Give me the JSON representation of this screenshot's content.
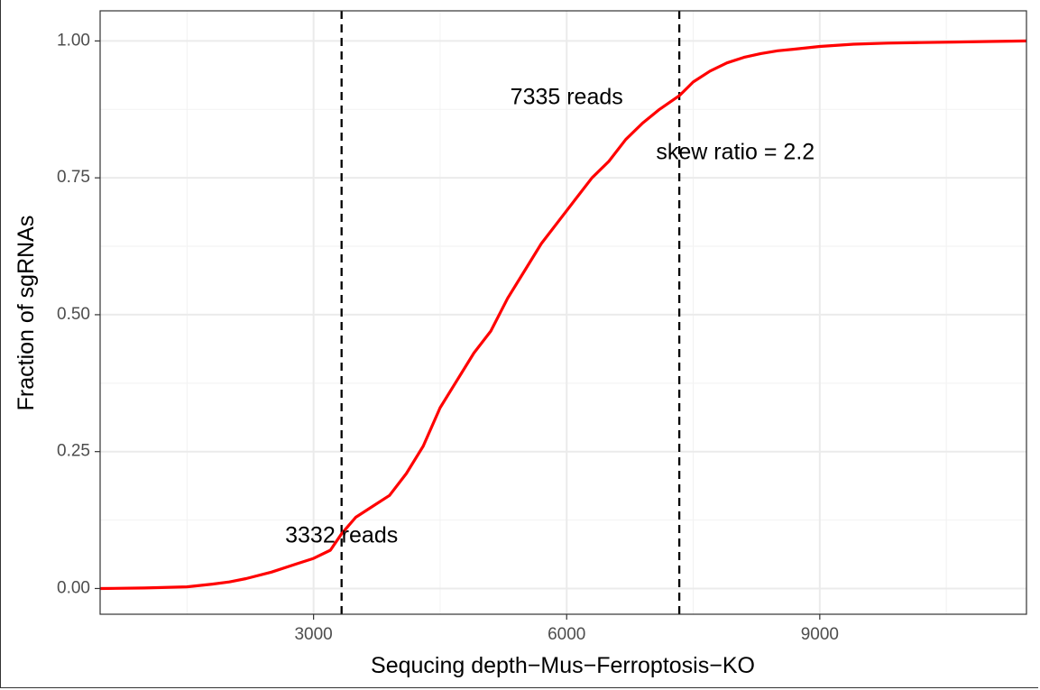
{
  "chart_data": {
    "type": "line",
    "xlabel": "Sequcing depth−Mus−Ferroptosis−KO",
    "ylabel": "Fraction of sgRNAs",
    "xlim": [
      470,
      11450
    ],
    "ylim": [
      -0.047,
      1.055
    ],
    "x_ticks": [
      3000,
      6000,
      9000
    ],
    "x_tick_labels": [
      "3000",
      "6000",
      "9000"
    ],
    "x_minor_grid": [
      1500,
      4500,
      7500,
      10500
    ],
    "y_ticks": [
      0,
      0.25,
      0.5,
      0.75,
      1.0
    ],
    "y_tick_labels": [
      "0.00",
      "0.25",
      "0.50",
      "0.75",
      "1.00"
    ],
    "y_minor_grid": [
      0.125,
      0.375,
      0.625,
      0.875
    ],
    "grid": true,
    "series": [
      {
        "color": "#ff0000",
        "x": [
          470,
          1000,
          1500,
          1800,
          2000,
          2200,
          2500,
          2800,
          3000,
          3200,
          3332,
          3500,
          3700,
          3900,
          4100,
          4300,
          4500,
          4700,
          4900,
          5100,
          5300,
          5500,
          5700,
          5900,
          6100,
          6300,
          6500,
          6700,
          6900,
          7100,
          7335,
          7500,
          7700,
          7900,
          8100,
          8300,
          8500,
          8700,
          9000,
          9400,
          9800,
          10200,
          10600,
          11000,
          11450
        ],
        "y": [
          0,
          0.001,
          0.003,
          0.008,
          0.012,
          0.018,
          0.03,
          0.045,
          0.055,
          0.07,
          0.1,
          0.13,
          0.15,
          0.17,
          0.21,
          0.26,
          0.33,
          0.38,
          0.43,
          0.47,
          0.53,
          0.58,
          0.63,
          0.67,
          0.71,
          0.75,
          0.78,
          0.82,
          0.85,
          0.875,
          0.9,
          0.925,
          0.945,
          0.96,
          0.97,
          0.977,
          0.982,
          0.985,
          0.99,
          0.994,
          0.996,
          0.997,
          0.998,
          0.999,
          1.0
        ]
      }
    ],
    "vlines": [
      3332,
      7335
    ],
    "annotations": [
      {
        "text": "3332 reads",
        "x": 3332,
        "y": 0.095
      },
      {
        "text": "7335 reads",
        "x": 6000,
        "y": 0.895
      },
      {
        "text": "skew ratio = 2.2",
        "x": 8000,
        "y": 0.795
      }
    ]
  }
}
